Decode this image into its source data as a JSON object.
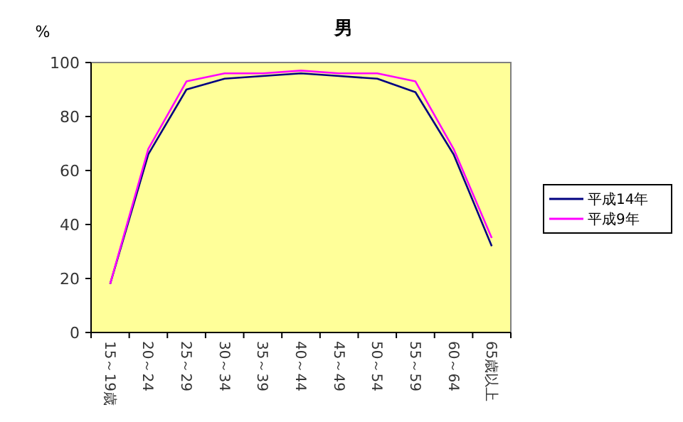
{
  "chart_data": {
    "type": "line",
    "title": "男",
    "ylabel": "%",
    "categories": [
      "15～19歳",
      "20～24",
      "25～29",
      "30～34",
      "35～39",
      "40～44",
      "45～49",
      "50～54",
      "55～59",
      "60～64",
      "65歳以上"
    ],
    "series": [
      {
        "name": "平成14年",
        "color": "#000080",
        "values": [
          18,
          66,
          90,
          94,
          95,
          96,
          95,
          94,
          89,
          66,
          32
        ]
      },
      {
        "name": "平成9年",
        "color": "#ff00ff",
        "values": [
          18,
          68,
          93,
          96,
          96,
          97,
          96,
          96,
          93,
          68,
          35
        ]
      }
    ],
    "ylim": [
      0,
      100
    ],
    "yticks": [
      0,
      20,
      40,
      60,
      80,
      100
    ],
    "grid": false,
    "legend": "right",
    "marker": "none",
    "line_style": "solid"
  }
}
